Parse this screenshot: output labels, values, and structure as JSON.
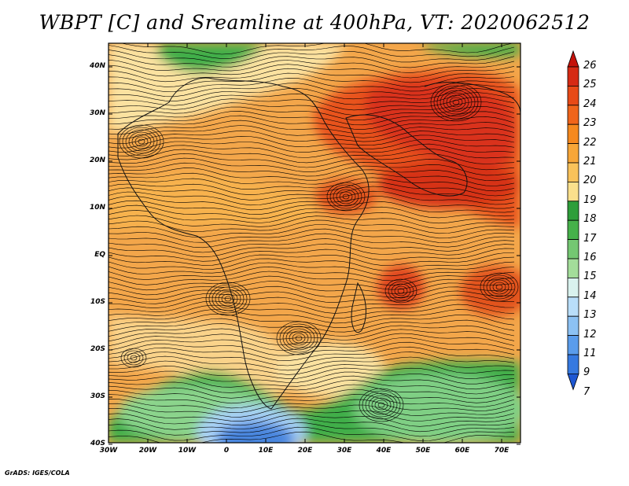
{
  "title": "WBPT [C] and Sreamline at 400hPa, VT: 2020062512",
  "credit": "GrADS: IGES/COLA",
  "lat_labels": [
    "40N",
    "30N",
    "20N",
    "10N",
    "EQ",
    "10S",
    "20S",
    "30S",
    "40S"
  ],
  "lon_labels": [
    "30W",
    "20W",
    "10W",
    "0",
    "10E",
    "20E",
    "30E",
    "40E",
    "50E",
    "60E",
    "70E"
  ],
  "colorbar": {
    "labels": [
      "26",
      "25",
      "24",
      "23",
      "22",
      "21",
      "20",
      "19",
      "18",
      "17",
      "16",
      "15",
      "14",
      "13",
      "12",
      "11",
      "9",
      "7"
    ],
    "colors": [
      "#c4120a",
      "#d62a14",
      "#e84a17",
      "#f0651b",
      "#f5891f",
      "#f7a638",
      "#f9c25a",
      "#fbe08c",
      "#2e9e3a",
      "#46b14a",
      "#74c772",
      "#a3dd9a",
      "#d9f2ee",
      "#b9defa",
      "#8cc1f3",
      "#5a9ceb",
      "#3679e0",
      "#1e57d2"
    ]
  },
  "colors": {
    "background": "#ffffff",
    "streamline": "#000000",
    "dark_orange": "#e2701e",
    "orange": "#f29a3b",
    "light_orange": "#f8c26a",
    "yellow": "#fbe2a0",
    "green": "#3fae4a",
    "light_green": "#8bd48c",
    "blue": "#4a86de"
  }
}
